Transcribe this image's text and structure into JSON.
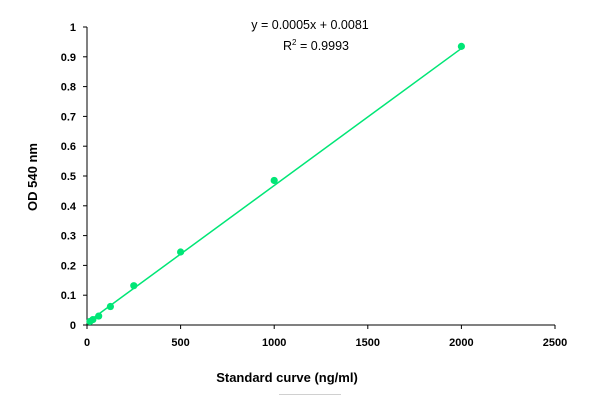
{
  "chart_data": {
    "type": "scatter",
    "title": "",
    "xlabel": "Standard curve (ng/ml)",
    "ylabel": "OD 540 nm",
    "xlim": [
      0,
      2500
    ],
    "ylim": [
      0,
      1
    ],
    "x_ticks": [
      0,
      500,
      1000,
      1500,
      2000,
      2500
    ],
    "y_ticks": [
      0,
      0.1,
      0.2,
      0.3,
      0.4,
      0.5,
      0.6,
      0.7,
      0.8,
      0.9,
      1
    ],
    "x_tick_labels": [
      "0",
      "500",
      "1000",
      "1500",
      "2000",
      "2500"
    ],
    "y_tick_labels": [
      "0",
      "0.1",
      "0.2",
      "0.3",
      "0.4",
      "0.5",
      "0.6",
      "0.7",
      "0.8",
      "0.9",
      "1"
    ],
    "grid": false,
    "series": [
      {
        "name": "Standard curve",
        "color": "#00e676",
        "x": [
          15.6,
          31.25,
          62.5,
          125,
          250,
          500,
          1000,
          2000
        ],
        "y": [
          0.012,
          0.018,
          0.03,
          0.062,
          0.132,
          0.245,
          0.485,
          0.935
        ]
      }
    ],
    "trendline": {
      "type": "linear",
      "slope": 0.00046,
      "intercept": 0.0081,
      "color": "#00e676",
      "x_range": [
        0,
        2000
      ]
    },
    "annotations": {
      "equation": "y = 0.0005x + 0.0081",
      "r2_prefix": "R",
      "r2_sup": "2",
      "r2_suffix": " = 0.9993"
    }
  }
}
